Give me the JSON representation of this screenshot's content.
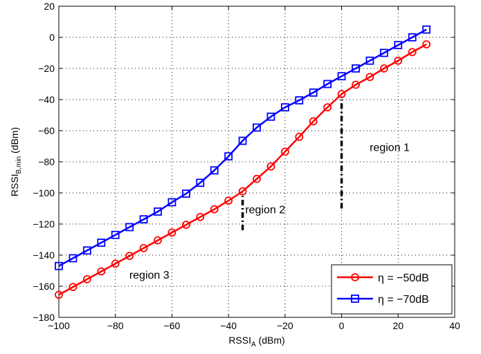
{
  "chart_data": {
    "type": "line",
    "xlabel": "RSSI",
    "xlabel_sub": "A",
    "xlabel_unit": " (dBm)",
    "ylabel": "RSSI",
    "ylabel_sub": "B,min",
    "ylabel_unit": " (dBm)",
    "xlim": [
      -100,
      40
    ],
    "ylim": [
      -180,
      20
    ],
    "x_ticks": [
      -100,
      -80,
      -60,
      -40,
      -20,
      0,
      20,
      40
    ],
    "y_ticks": [
      20,
      0,
      -20,
      -40,
      -60,
      -80,
      -100,
      -120,
      -140,
      -160,
      -180
    ],
    "x_tick_labels": [
      "−100",
      "−80",
      "−60",
      "−40",
      "−20",
      "0",
      "20",
      "40"
    ],
    "y_tick_labels": [
      "20",
      "0",
      "−20",
      "−40",
      "−60",
      "−80",
      "−100",
      "−120",
      "−140",
      "−160",
      "−180"
    ],
    "grid": true,
    "legend_position": "bottom-right",
    "x": [
      -100,
      -95,
      -90,
      -85,
      -80,
      -75,
      -70,
      -65,
      -60,
      -55,
      -50,
      -45,
      -40,
      -35,
      -30,
      -25,
      -20,
      -15,
      -10,
      -5,
      0,
      5,
      10,
      15,
      20,
      25,
      30
    ],
    "series": [
      {
        "name": "η = −50dB",
        "color": "#ff0000",
        "marker": "circle",
        "values": [
          -165.5,
          -160.5,
          -155.5,
          -150.5,
          -145.5,
          -140.5,
          -135.5,
          -130.5,
          -125.5,
          -120.5,
          -115.5,
          -110.5,
          -105,
          -99,
          -91,
          -83,
          -73.5,
          -64,
          -54,
          -45,
          -36.5,
          -30.5,
          -25.5,
          -20,
          -15,
          -9.5,
          -4.5
        ]
      },
      {
        "name": "η = −70dB",
        "color": "#0000ff",
        "marker": "square",
        "values": [
          -147,
          -142,
          -137,
          -132,
          -127,
          -122,
          -117,
          -112,
          -106,
          -100.5,
          -93.5,
          -85.5,
          -76.5,
          -66.5,
          -58,
          -51,
          -45,
          -40.5,
          -35.5,
          -30,
          -25,
          -20,
          -15,
          -10,
          -5,
          0,
          5
        ]
      }
    ],
    "annotations": [
      {
        "text": "region 1",
        "x": 17,
        "y": -73
      },
      {
        "text": "region 2",
        "x": -27,
        "y": -113
      },
      {
        "text": "region 3",
        "x": -68,
        "y": -155
      }
    ],
    "boundary_lines": [
      {
        "x": 0,
        "y_from": -110,
        "y_to": -40
      },
      {
        "x": -35,
        "y_from": -124,
        "y_to": -102
      }
    ]
  }
}
